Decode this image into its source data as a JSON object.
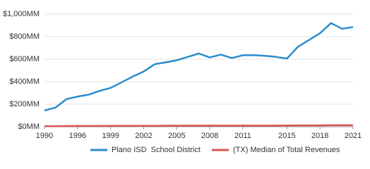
{
  "chart_data": {
    "type": "line",
    "categories": [
      "1990",
      null,
      null,
      "1996",
      null,
      null,
      "1999",
      null,
      null,
      "2002",
      null,
      null,
      "2005",
      null,
      null,
      "2008",
      null,
      null,
      "2011",
      null,
      null,
      null,
      "2015",
      null,
      null,
      "2018",
      null,
      null,
      "2021"
    ],
    "series": [
      {
        "name": "Plano ISD  School District",
        "color": "#2b8cce",
        "values": [
          145,
          170,
          245,
          268,
          285,
          318,
          345,
          395,
          445,
          490,
          555,
          572,
          590,
          620,
          650,
          615,
          640,
          610,
          635,
          635,
          630,
          620,
          605,
          710,
          770,
          830,
          920,
          870,
          885
        ]
      },
      {
        "name": "(TX) Median of Total Revenues",
        "color": "#d9534f",
        "values": [
          5,
          5,
          6,
          7,
          7,
          7,
          8,
          8,
          8,
          8,
          8,
          9,
          9,
          9,
          10,
          10,
          10,
          10,
          10,
          10,
          10,
          10,
          11,
          12,
          12,
          12,
          13,
          13,
          13
        ]
      }
    ],
    "ylim": [
      0,
      1000
    ],
    "yticks": [
      {
        "value": 0,
        "label": "$0MM"
      },
      {
        "value": 200,
        "label": "$200MM"
      },
      {
        "value": 400,
        "label": "$400MM"
      },
      {
        "value": 600,
        "label": "$600MM"
      },
      {
        "value": 800,
        "label": "$800MM"
      },
      {
        "value": 1000,
        "label": "$1,000MM"
      }
    ],
    "grid": true
  }
}
